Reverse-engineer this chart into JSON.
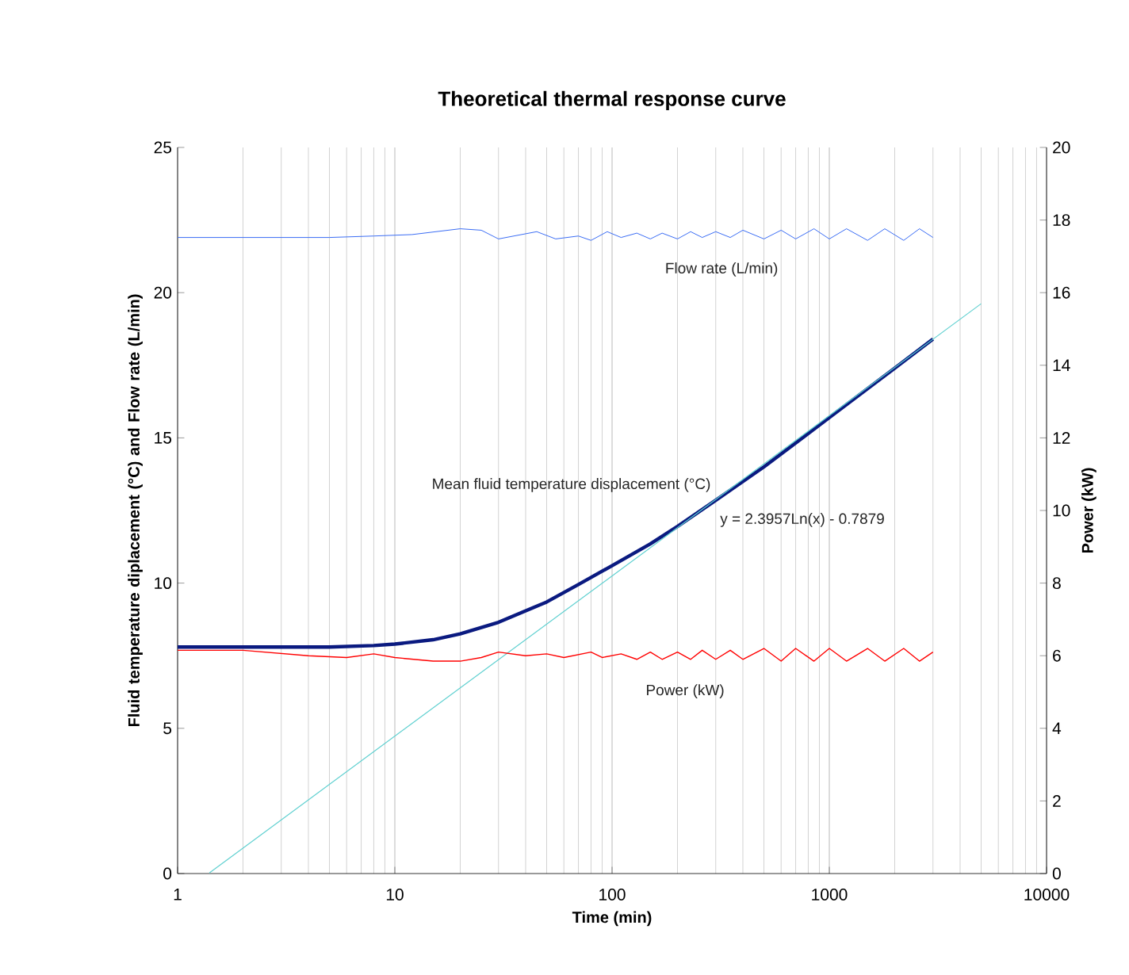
{
  "chart_data": {
    "type": "line",
    "title": "Theoretical thermal response curve",
    "xlabel": "Time (min)",
    "ylabel": "Fluid temperature diplacement (°C) and Flow rate (L/min)",
    "y2label": "Power (kW)",
    "log": "x",
    "grid": "x",
    "legend": false,
    "xlim": [
      1,
      10000
    ],
    "xticks": [
      1,
      10,
      100,
      1000,
      10000
    ],
    "ylim": [
      0,
      25
    ],
    "yticks": [
      0,
      5,
      10,
      15,
      20,
      25
    ],
    "y2lim": [
      0,
      20
    ],
    "y2ticks": [
      0,
      2,
      4,
      6,
      8,
      10,
      12,
      14,
      16,
      18,
      20
    ],
    "series": [
      {
        "name": "Flow rate (L/min)",
        "color": "#3a6cf4",
        "x": [
          1,
          5,
          8,
          12,
          20,
          25,
          30,
          45,
          55,
          70,
          80,
          95,
          110,
          130,
          150,
          170,
          200,
          230,
          260,
          300,
          350,
          400,
          500,
          600,
          700,
          850,
          1000,
          1200,
          1500,
          1800,
          2200,
          2600,
          3000
        ],
        "values": [
          21.9,
          21.9,
          21.95,
          22.0,
          22.2,
          22.15,
          21.85,
          22.1,
          21.85,
          21.95,
          21.8,
          22.1,
          21.9,
          22.05,
          21.85,
          22.05,
          21.85,
          22.1,
          21.9,
          22.1,
          21.9,
          22.15,
          21.85,
          22.15,
          21.85,
          22.2,
          21.85,
          22.2,
          21.8,
          22.2,
          21.8,
          22.2,
          21.9
        ]
      },
      {
        "name": "Mean fluid temperature displacement (°C)",
        "color": "#0a1a80",
        "x": [
          1,
          2,
          5,
          8,
          10,
          15,
          20,
          30,
          50,
          70,
          100,
          150,
          200,
          300,
          500,
          1000,
          2000,
          3000
        ],
        "values": [
          7.8,
          7.8,
          7.8,
          7.85,
          7.9,
          8.05,
          8.25,
          8.65,
          9.35,
          9.95,
          10.6,
          11.35,
          11.95,
          12.85,
          14.0,
          15.7,
          17.4,
          18.4
        ]
      },
      {
        "name": "y = 2.3957Ln(x) - 0.7879",
        "color": "#5fd0d0",
        "x": [
          1.4,
          5000
        ],
        "values": [
          0.02,
          19.62
        ]
      },
      {
        "name": "Power (kW)",
        "color": "#ff0000",
        "axis": "y2",
        "x": [
          1,
          2,
          4,
          6,
          8,
          10,
          15,
          20,
          25,
          30,
          40,
          50,
          60,
          80,
          90,
          110,
          130,
          150,
          170,
          200,
          230,
          260,
          300,
          350,
          400,
          500,
          600,
          700,
          850,
          1000,
          1200,
          1500,
          1800,
          2200,
          2600,
          3000
        ],
        "values": [
          6.15,
          6.15,
          6.0,
          5.95,
          6.05,
          5.95,
          5.85,
          5.85,
          5.95,
          6.1,
          6.0,
          6.05,
          5.95,
          6.1,
          5.95,
          6.05,
          5.9,
          6.1,
          5.9,
          6.1,
          5.9,
          6.15,
          5.9,
          6.15,
          5.9,
          6.2,
          5.85,
          6.2,
          5.85,
          6.2,
          5.85,
          6.2,
          5.85,
          6.2,
          5.85,
          6.1
        ]
      }
    ]
  }
}
